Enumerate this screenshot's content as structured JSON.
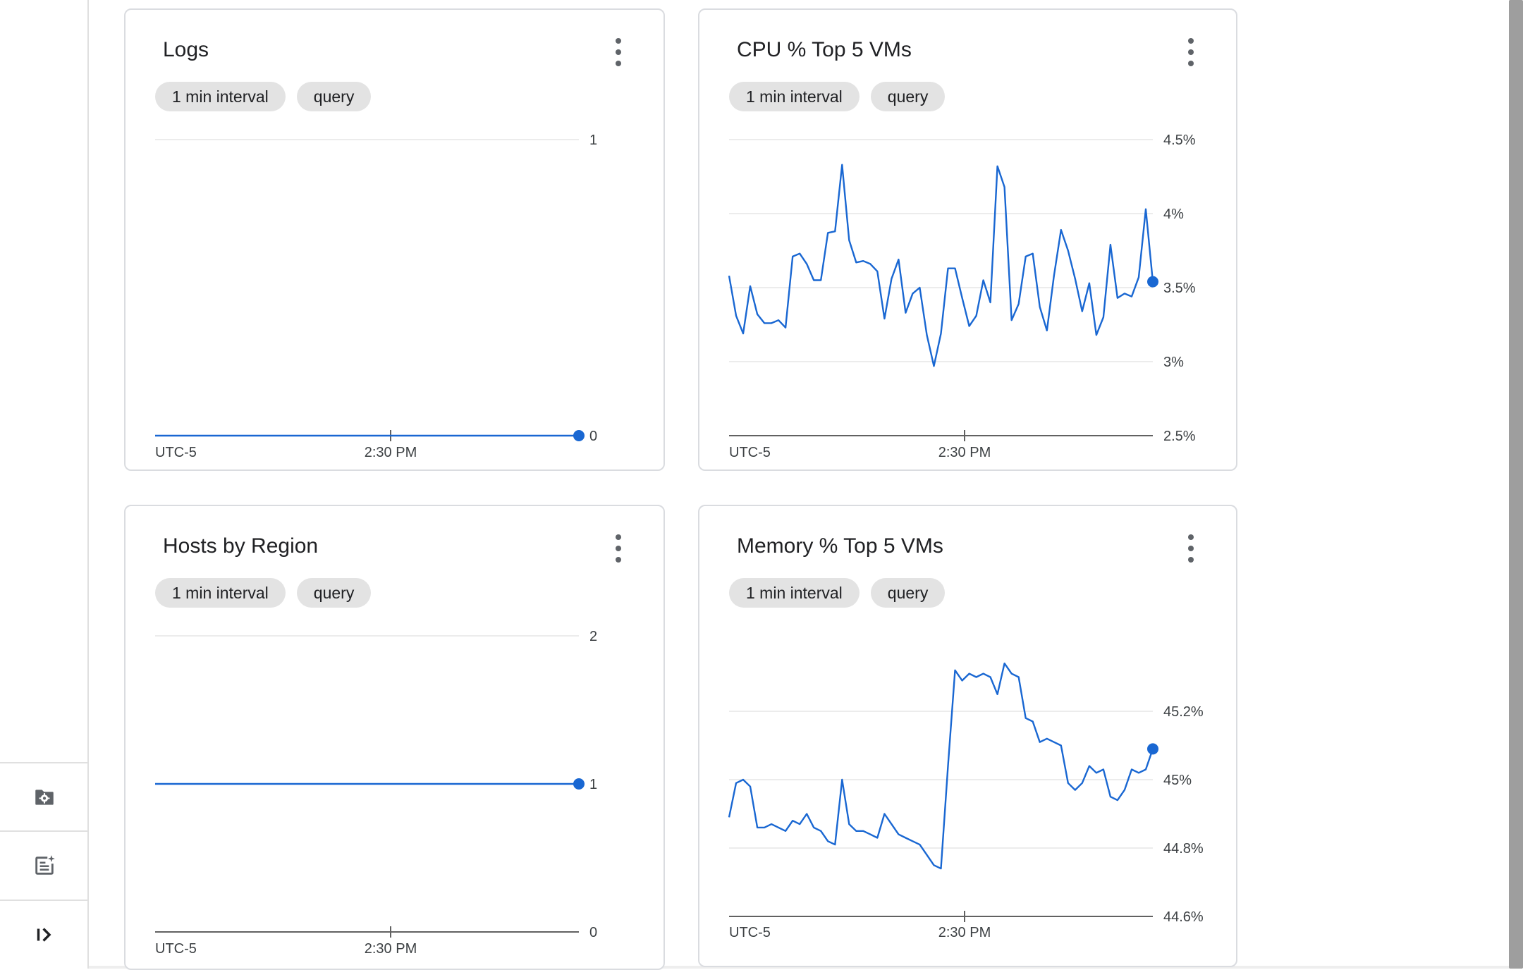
{
  "left_rail": {
    "buttons": [
      {
        "icon": "folder-settings-icon"
      },
      {
        "icon": "notes-sparkle-icon"
      },
      {
        "icon": "expand-panel-icon"
      }
    ]
  },
  "colors": {
    "line": "#1967d2",
    "grid": "#e6e6e6",
    "axis": "#616161",
    "chip_bg": "#e3e3e3",
    "card_border": "#dadce0"
  },
  "cards": [
    {
      "title": "Logs",
      "chips": [
        "1 min interval",
        "query"
      ]
    },
    {
      "title": "CPU % Top 5 VMs",
      "chips": [
        "1 min interval",
        "query"
      ]
    },
    {
      "title": "Hosts by Region",
      "chips": [
        "1 min interval",
        "query"
      ]
    },
    {
      "title": "Memory % Top 5 VMs",
      "chips": [
        "1 min interval",
        "query"
      ]
    }
  ],
  "chart_data": [
    {
      "type": "line",
      "title": "Logs",
      "x_labels": [
        "UTC-5",
        "2:30 PM"
      ],
      "y_ticks": [
        {
          "value": 1,
          "label": "1"
        },
        {
          "value": 0,
          "label": "0"
        }
      ],
      "ylim": [
        0,
        1
      ],
      "grid": true,
      "values": [
        0,
        0
      ]
    },
    {
      "type": "line",
      "title": "CPU % Top 5 VMs",
      "x_labels": [
        "UTC-5",
        "2:30 PM"
      ],
      "y_ticks": [
        {
          "value": 4.5,
          "label": "4.5%"
        },
        {
          "value": 4.0,
          "label": "4%"
        },
        {
          "value": 3.5,
          "label": "3.5%"
        },
        {
          "value": 3.0,
          "label": "3%"
        },
        {
          "value": 2.5,
          "label": "2.5%"
        }
      ],
      "ylim": [
        2.5,
        4.5
      ],
      "grid": true,
      "values": [
        3.58,
        3.31,
        3.19,
        3.51,
        3.32,
        3.26,
        3.26,
        3.28,
        3.23,
        3.71,
        3.73,
        3.66,
        3.55,
        3.55,
        3.87,
        3.88,
        4.33,
        3.82,
        3.67,
        3.68,
        3.66,
        3.61,
        3.29,
        3.56,
        3.69,
        3.33,
        3.46,
        3.5,
        3.18,
        2.97,
        3.19,
        3.63,
        3.63,
        3.43,
        3.24,
        3.31,
        3.55,
        3.4,
        4.32,
        4.18,
        3.28,
        3.39,
        3.71,
        3.73,
        3.37,
        3.21,
        3.58,
        3.89,
        3.75,
        3.56,
        3.34,
        3.53,
        3.18,
        3.3,
        3.79,
        3.43,
        3.46,
        3.44,
        3.57,
        4.03,
        3.54
      ]
    },
    {
      "type": "line",
      "title": "Hosts by Region",
      "x_labels": [
        "UTC-5",
        "2:30 PM"
      ],
      "y_ticks": [
        {
          "value": 2,
          "label": "2"
        },
        {
          "value": 1,
          "label": "1"
        },
        {
          "value": 0,
          "label": "0"
        }
      ],
      "ylim": [
        0,
        2
      ],
      "grid": true,
      "values": [
        1,
        1
      ]
    },
    {
      "type": "line",
      "title": "Memory % Top 5 VMs",
      "x_labels": [
        "UTC-5",
        "2:30 PM"
      ],
      "y_ticks": [
        {
          "value": 45.2,
          "label": "45.2%"
        },
        {
          "value": 45.0,
          "label": "45%"
        },
        {
          "value": 44.8,
          "label": "44.8%"
        },
        {
          "value": 44.6,
          "label": "44.6%"
        }
      ],
      "ylim": [
        44.6,
        45.4
      ],
      "grid": true,
      "values": [
        44.89,
        44.99,
        45.0,
        44.98,
        44.86,
        44.86,
        44.87,
        44.86,
        44.85,
        44.88,
        44.87,
        44.9,
        44.86,
        44.85,
        44.82,
        44.81,
        45.0,
        44.87,
        44.85,
        44.85,
        44.84,
        44.83,
        44.9,
        44.87,
        44.84,
        44.83,
        44.82,
        44.81,
        44.78,
        44.75,
        44.74,
        45.04,
        45.32,
        45.29,
        45.31,
        45.3,
        45.31,
        45.3,
        45.25,
        45.34,
        45.31,
        45.3,
        45.18,
        45.17,
        45.11,
        45.12,
        45.11,
        45.1,
        44.99,
        44.97,
        44.99,
        45.04,
        45.02,
        45.03,
        44.95,
        44.94,
        44.97,
        45.03,
        45.02,
        45.03,
        45.09
      ]
    }
  ]
}
